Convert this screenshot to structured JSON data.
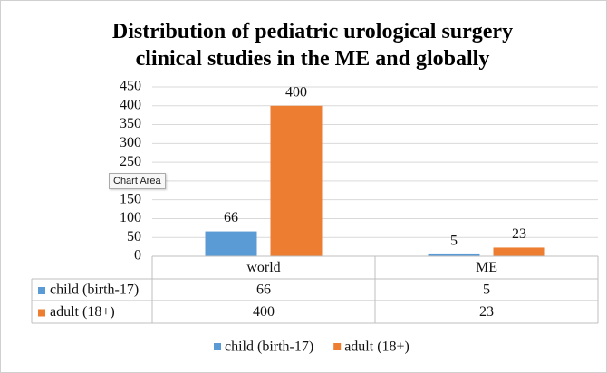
{
  "chart_data": {
    "type": "bar",
    "title": "Distribution of pediatric urological surgery clinical studies in the ME and globally",
    "categories": [
      "world",
      "ME"
    ],
    "series": [
      {
        "name": "child (birth-17)",
        "color": "#5b9bd5",
        "values": [
          66,
          5
        ]
      },
      {
        "name": "adult (18+)",
        "color": "#ed7d31",
        "values": [
          400,
          23
        ]
      }
    ],
    "ylim": [
      0,
      450
    ],
    "yticks": [
      0,
      50,
      100,
      150,
      200,
      250,
      300,
      350,
      400,
      450
    ],
    "grid": true,
    "legend": "bottom",
    "data_table": true,
    "tooltip": "Chart Area"
  }
}
